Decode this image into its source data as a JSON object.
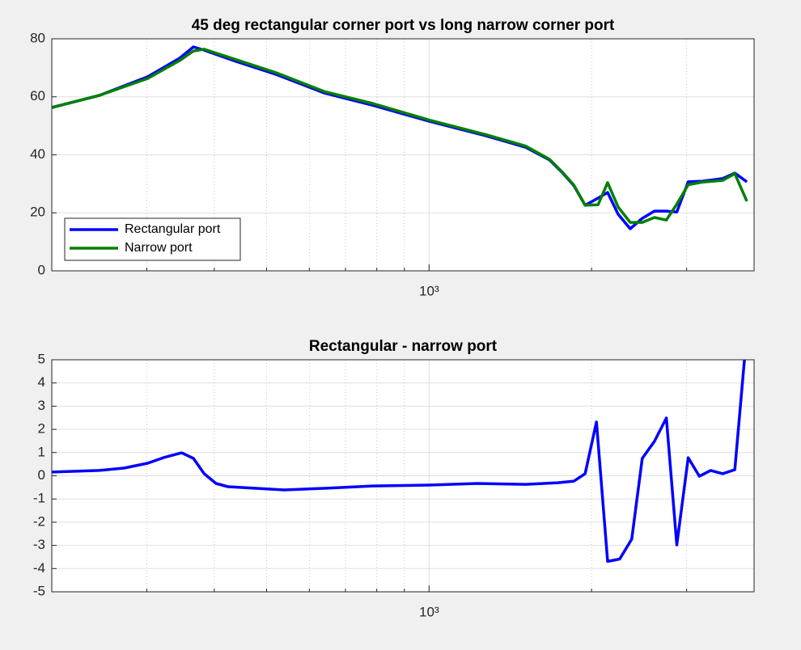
{
  "chart_data": [
    {
      "type": "line",
      "title": "45 deg rectangular corner port vs long narrow corner port",
      "x": [
        200,
        245,
        301,
        345,
        366,
        383,
        439,
        521,
        640,
        786,
        1000,
        1272,
        1510,
        1673,
        1762,
        1855,
        1946,
        2056,
        2142,
        2240,
        2358,
        2483,
        2615,
        2752,
        2877,
        3020,
        3212,
        3499,
        3684,
        3879
      ],
      "series": [
        {
          "name": "Rectangular port",
          "color": "#0000ff",
          "values": [
            56.3,
            60.5,
            66.9,
            73.3,
            77.2,
            76.1,
            72.2,
            67.7,
            61.3,
            57.1,
            51.6,
            46.6,
            42.6,
            38.2,
            34,
            29.3,
            22.6,
            25.1,
            27,
            19.5,
            14.5,
            18.1,
            20.6,
            20.6,
            20.3,
            30.7,
            30.9,
            31.8,
            33.7,
            30.7
          ]
        },
        {
          "name": "Narrow port",
          "color": "#008000",
          "values": [
            56.3,
            60.5,
            66.3,
            72.5,
            75.8,
            76.4,
            72.8,
            68.3,
            61.8,
            57.7,
            52,
            47,
            43,
            38.4,
            34.2,
            29.5,
            22.6,
            22.8,
            30.4,
            22,
            16.7,
            16.7,
            18.4,
            17.5,
            23,
            29.7,
            30.6,
            31.2,
            33.5,
            24
          ]
        }
      ],
      "xscale": "log",
      "xlim": [
        200,
        4000
      ],
      "xticks": [
        {
          "value": 1000,
          "label": "10³"
        }
      ],
      "xminorticks": [
        300,
        400,
        500,
        600,
        700,
        800,
        900,
        2000,
        3000
      ],
      "ylim": [
        0,
        80
      ],
      "yticks": [
        0,
        20,
        40,
        60,
        80
      ],
      "grid": true,
      "legend": "southwest"
    },
    {
      "type": "line",
      "title": "Rectangular - narrow port",
      "x": [
        200,
        245,
        272,
        301,
        322,
        348,
        366,
        383,
        403,
        424,
        539,
        640,
        786,
        1000,
        1229,
        1510,
        1732,
        1855,
        1946,
        2042,
        2142,
        2255,
        2374,
        2483,
        2615,
        2752,
        2877,
        3020,
        3168,
        3323,
        3499,
        3684,
        3839
      ],
      "values": [
        0.16,
        0.23,
        0.33,
        0.54,
        0.78,
        0.99,
        0.75,
        0.09,
        -0.33,
        -0.47,
        -0.61,
        -0.54,
        -0.44,
        -0.4,
        -0.33,
        -0.37,
        -0.3,
        -0.23,
        0.09,
        2.32,
        -3.69,
        -3.59,
        -2.73,
        0.75,
        1.48,
        2.49,
        -2.98,
        0.78,
        -0.02,
        0.23,
        0.09,
        0.26,
        5
      ],
      "color": "#0000ff",
      "xscale": "log",
      "xlim": [
        200,
        4000
      ],
      "xticks": [
        {
          "value": 1000,
          "label": "10³"
        }
      ],
      "xminorticks": [
        300,
        400,
        500,
        600,
        700,
        800,
        900,
        2000,
        3000
      ],
      "ylim": [
        -5,
        5
      ],
      "yticks": [
        -5,
        -4,
        -3,
        -2,
        -1,
        0,
        1,
        2,
        3,
        4,
        5
      ],
      "grid": true
    }
  ]
}
